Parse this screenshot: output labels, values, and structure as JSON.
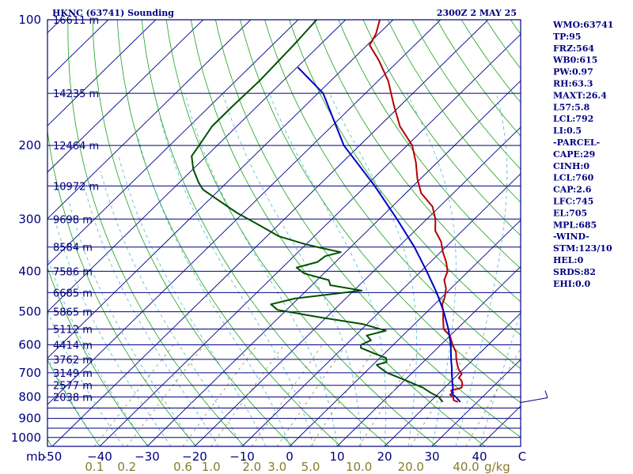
{
  "header": {
    "station": "HKNC (63741) Sounding",
    "time": "2300Z  2 MAY 25"
  },
  "indices": [
    "WMO:63741",
    "TP:95",
    "FRZ:564",
    "WB0:615",
    "PW:0.97",
    "RH:63.3",
    "MAXT:26.4",
    "L57:5.8",
    "LCL:792",
    "LI:0.5",
    "-PARCEL-",
    "CAPE:29",
    "CINH:0",
    "LCL:760",
    "CAP:2.6",
    "LFC:745",
    "EL:705",
    "MPL:685",
    "-WIND-",
    "STM:123/10",
    "HEL:0",
    "SRDS:82",
    "EHI:0.0"
  ],
  "colors": {
    "frame": "#000080",
    "isotherm": "#00008b",
    "dry_adiabat": "#19a019",
    "moist_adiabat": "#50b4d2",
    "mixing_ratio": "#a09650",
    "temperature": "#b40000",
    "dewpoint": "#005000",
    "parcel": "#0000c8",
    "mixing_label": "#8a7a28"
  },
  "chart_data": {
    "type": "line",
    "diagram": "skew-T log-P",
    "pressure_ticks": [
      {
        "p": 100,
        "label": "100"
      },
      {
        "p": 200,
        "label": "200"
      },
      {
        "p": 300,
        "label": "300"
      },
      {
        "p": 400,
        "label": "400"
      },
      {
        "p": 500,
        "label": "500"
      },
      {
        "p": 600,
        "label": "600"
      },
      {
        "p": 700,
        "label": "700"
      },
      {
        "p": 800,
        "label": "800"
      },
      {
        "p": 900,
        "label": "900"
      },
      {
        "p": 1000,
        "label": "1000"
      }
    ],
    "isobars": [
      100,
      150,
      200,
      250,
      300,
      350,
      400,
      450,
      500,
      550,
      600,
      650,
      700,
      750,
      800,
      850,
      900,
      950,
      1000
    ],
    "height_labels": [
      {
        "p": 100,
        "label": "16611 m"
      },
      {
        "p": 150,
        "label": "14235 m"
      },
      {
        "p": 200,
        "label": "12464 m"
      },
      {
        "p": 250,
        "label": "10972 m"
      },
      {
        "p": 300,
        "label": "9698 m"
      },
      {
        "p": 350,
        "label": "8584 m"
      },
      {
        "p": 400,
        "label": "7586 m"
      },
      {
        "p": 450,
        "label": "6685 m"
      },
      {
        "p": 500,
        "label": "5865 m"
      },
      {
        "p": 550,
        "label": "5112 m"
      },
      {
        "p": 600,
        "label": "4414 m"
      },
      {
        "p": 650,
        "label": "3762 m"
      },
      {
        "p": 700,
        "label": "3149 m"
      },
      {
        "p": 750,
        "label": "2577 m"
      },
      {
        "p": 800,
        "label": "2038 m"
      }
    ],
    "temperature_axis": {
      "unit_left": "mb",
      "unit_right": "C",
      "ticks": [
        {
          "t": -50,
          "label": "-50"
        },
        {
          "t": -40,
          "label": "−40"
        },
        {
          "t": -30,
          "label": "−30"
        },
        {
          "t": -20,
          "label": "−20"
        },
        {
          "t": -10,
          "label": "−10"
        },
        {
          "t": 0,
          "label": "0"
        },
        {
          "t": 10,
          "label": "10"
        },
        {
          "t": 20,
          "label": "20"
        },
        {
          "t": 30,
          "label": "30"
        },
        {
          "t": 40,
          "label": "40"
        }
      ]
    },
    "mixing_ratio_axis": {
      "unit": "g/kg",
      "ticks": [
        {
          "w": 0.1,
          "label": "0.1"
        },
        {
          "w": 0.2,
          "label": "0.2"
        },
        {
          "w": 0.6,
          "label": "0.6"
        },
        {
          "w": 1.0,
          "label": "1.0"
        },
        {
          "w": 2.0,
          "label": "2.0"
        },
        {
          "w": 3.0,
          "label": "3.0"
        },
        {
          "w": 5.0,
          "label": "5.0"
        },
        {
          "w": 10.0,
          "label": "10.0"
        },
        {
          "w": 20.0,
          "label": "20.0"
        },
        {
          "w": 40.0,
          "label": "40.0"
        }
      ]
    },
    "series": [
      {
        "id": "temperature",
        "points": [
          [
            822,
            25.9
          ],
          [
            815,
            24.7
          ],
          [
            800,
            23.8
          ],
          [
            790,
            22.7
          ],
          [
            780,
            22.9
          ],
          [
            772,
            22.0
          ],
          [
            760,
            23.6
          ],
          [
            745,
            23.0
          ],
          [
            730,
            22.0
          ],
          [
            720,
            20.9
          ],
          [
            705,
            20.7
          ],
          [
            690,
            19.3
          ],
          [
            670,
            17.8
          ],
          [
            650,
            16.4
          ],
          [
            625,
            14.8
          ],
          [
            600,
            12.5
          ],
          [
            570,
            9.9
          ],
          [
            550,
            7.2
          ],
          [
            520,
            4.9
          ],
          [
            500,
            3.4
          ],
          [
            480,
            1.6
          ],
          [
            460,
            0.5
          ],
          [
            440,
            -1.0
          ],
          [
            420,
            -3.2
          ],
          [
            400,
            -4.4
          ],
          [
            380,
            -6.7
          ],
          [
            360,
            -9.5
          ],
          [
            340,
            -12.1
          ],
          [
            320,
            -15.7
          ],
          [
            300,
            -18.2
          ],
          [
            280,
            -21.5
          ],
          [
            260,
            -26.8
          ],
          [
            240,
            -30.7
          ],
          [
            220,
            -34.4
          ],
          [
            200,
            -38.9
          ],
          [
            180,
            -45.6
          ],
          [
            160,
            -51.5
          ],
          [
            140,
            -57.9
          ],
          [
            125,
            -64.3
          ],
          [
            115,
            -69.5
          ],
          [
            108,
            -70.6
          ],
          [
            100,
            -72.8
          ]
        ]
      },
      {
        "id": "dewpoint",
        "points": [
          [
            822,
            22.7
          ],
          [
            800,
            20.8
          ],
          [
            780,
            18.0
          ],
          [
            760,
            15.5
          ],
          [
            740,
            12.0
          ],
          [
            720,
            8.5
          ],
          [
            700,
            4.7
          ],
          [
            680,
            2.0
          ],
          [
            670,
            0.8
          ],
          [
            660,
            2.3
          ],
          [
            645,
            1.3
          ],
          [
            630,
            -2.0
          ],
          [
            610,
            -6.2
          ],
          [
            600,
            -6.8
          ],
          [
            585,
            -5.7
          ],
          [
            570,
            -7.6
          ],
          [
            555,
            -4.6
          ],
          [
            535,
            -11.0
          ],
          [
            515,
            -21.7
          ],
          [
            495,
            -31.9
          ],
          [
            480,
            -34.5
          ],
          [
            465,
            -30.7
          ],
          [
            445,
            -18.3
          ],
          [
            432,
            -26.1
          ],
          [
            420,
            -27.5
          ],
          [
            405,
            -34.1
          ],
          [
            392,
            -37.0
          ],
          [
            380,
            -33.8
          ],
          [
            368,
            -33.4
          ],
          [
            360,
            -31.0
          ],
          [
            352,
            -35.9
          ],
          [
            345,
            -40.0
          ],
          [
            330,
            -47.4
          ],
          [
            310,
            -54.1
          ],
          [
            290,
            -61.3
          ],
          [
            270,
            -68.1
          ],
          [
            255,
            -73.5
          ],
          [
            245,
            -76.0
          ],
          [
            228,
            -79.9
          ],
          [
            212,
            -83.1
          ],
          [
            200,
            -83.8
          ],
          [
            180,
            -85.2
          ],
          [
            160,
            -85.2
          ],
          [
            140,
            -85.0
          ],
          [
            115,
            -85.5
          ],
          [
            100,
            -86.1
          ]
        ]
      },
      {
        "id": "parcel",
        "points": [
          [
            822,
            26.4
          ],
          [
            800,
            24.4
          ],
          [
            790,
            23.3
          ],
          [
            780,
            22.6
          ],
          [
            760,
            21.8
          ],
          [
            745,
            20.9
          ],
          [
            730,
            20.1
          ],
          [
            705,
            18.6
          ],
          [
            685,
            17.5
          ],
          [
            650,
            15.3
          ],
          [
            600,
            12.1
          ],
          [
            550,
            8.2
          ],
          [
            500,
            3.5
          ],
          [
            450,
            -2.1
          ],
          [
            400,
            -8.8
          ],
          [
            350,
            -16.6
          ],
          [
            300,
            -26.3
          ],
          [
            250,
            -38.1
          ],
          [
            200,
            -53.3
          ],
          [
            150,
            -68.9
          ],
          [
            130,
            -79.8
          ]
        ]
      }
    ],
    "wind_barb": {
      "speed_kt": 10
    }
  }
}
